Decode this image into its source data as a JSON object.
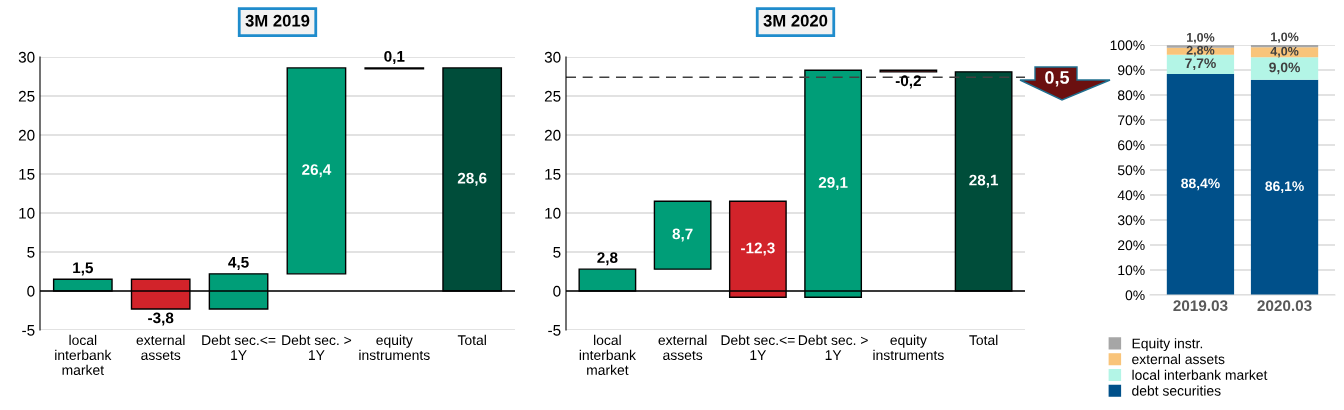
{
  "chart_data": [
    {
      "type": "bar",
      "title": "3M 2019",
      "categories": [
        "local\ninterbank\nmarket",
        "external\nassets",
        "Debt sec.<=\n1Y",
        "Debt sec. >\n1Y",
        "equity\ninstruments",
        "Total"
      ],
      "values": [
        1.5,
        -3.8,
        4.5,
        26.4,
        0.1,
        28.6
      ],
      "base": [
        0,
        1.5,
        -2.3,
        2.2,
        28.5,
        0
      ],
      "colors": [
        "#009e78",
        "#d2232a",
        "#009e78",
        "#009e78",
        "#000000",
        "#004d3a"
      ],
      "value_labels": [
        "1,5",
        "-3,8",
        "4,5",
        "26,4",
        "0,1",
        "28,6"
      ],
      "ylim": [
        -5,
        30
      ],
      "yticks": [
        -5,
        0,
        5,
        10,
        15,
        20,
        25,
        30
      ],
      "grid": "y",
      "ref_lines": [
        {
          "axis": "y",
          "value": 0,
          "color": "#000000",
          "line_style": "solid"
        }
      ]
    },
    {
      "type": "bar",
      "title": "3M 2020",
      "categories": [
        "local\ninterbank\nmarket",
        "external\nassets",
        "Debt sec.<=\n1Y",
        "Debt sec. >\n1Y",
        "equity\ninstruments",
        "Total"
      ],
      "values": [
        2.8,
        8.7,
        -12.3,
        29.1,
        -0.2,
        28.1
      ],
      "base": [
        0,
        2.8,
        11.5,
        -0.8,
        28.3,
        0
      ],
      "colors": [
        "#009e78",
        "#009e78",
        "#d2232a",
        "#009e78",
        "#d2232a",
        "#004d3a"
      ],
      "value_labels": [
        "2,8",
        "8,7",
        "-12,3",
        "29,1",
        "-0,2",
        "28,1"
      ],
      "ylim": [
        -5,
        30
      ],
      "yticks": [
        -5,
        0,
        5,
        10,
        15,
        20,
        25,
        30
      ],
      "grid": "y",
      "ref_lines": [
        {
          "axis": "y",
          "value": 0,
          "color": "#000000",
          "line_style": "solid"
        },
        {
          "axis": "y",
          "value": 27.4,
          "color": "#404040",
          "line_style": "dashed"
        }
      ],
      "annotations": [
        "0,5"
      ]
    },
    {
      "type": "bar",
      "stacked": true,
      "categories": [
        "2019.03",
        "2020.03"
      ],
      "series": [
        {
          "name": "debt securities",
          "color": "#00508a",
          "values": [
            88.4,
            86.1
          ],
          "value_labels": [
            "88,4%",
            "86,1%"
          ]
        },
        {
          "name": "local interbank market",
          "color": "#b3f5e6",
          "values": [
            7.7,
            9.0
          ],
          "value_labels": [
            "7,7%",
            "9,0%"
          ]
        },
        {
          "name": "external assets",
          "color": "#f9c47a",
          "values": [
            2.8,
            4.0
          ],
          "value_labels": [
            "2,8%",
            "4,0%"
          ]
        },
        {
          "name": "Equity instr.",
          "color": "#a6a6a6",
          "values": [
            1.0,
            1.0
          ],
          "value_labels": [
            "1,0%",
            "1,0%"
          ]
        }
      ],
      "ylim": [
        0,
        100
      ],
      "yticks": [
        {
          "value": 0,
          "label": "0%"
        },
        {
          "value": 10,
          "label": "10%"
        },
        {
          "value": 20,
          "label": "20%"
        },
        {
          "value": 30,
          "label": "30%"
        },
        {
          "value": 40,
          "label": "40%"
        },
        {
          "value": 50,
          "label": "50%"
        },
        {
          "value": 60,
          "label": "60%"
        },
        {
          "value": 70,
          "label": "70%"
        },
        {
          "value": 80,
          "label": "80%"
        },
        {
          "value": 90,
          "label": "90%"
        },
        {
          "value": 100,
          "label": "100%"
        }
      ],
      "grid": "y",
      "legend": "bottom"
    }
  ]
}
